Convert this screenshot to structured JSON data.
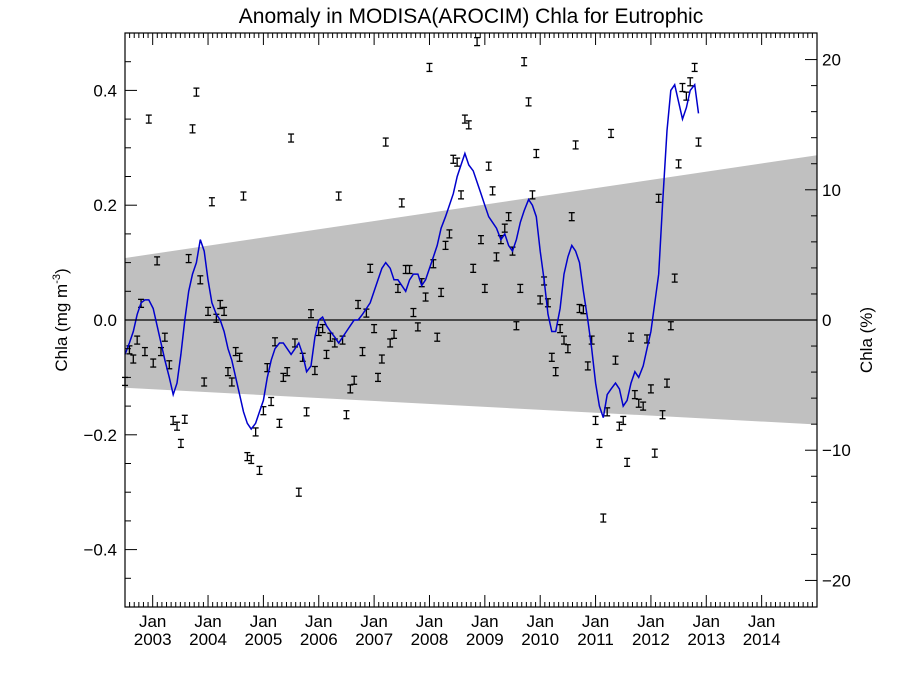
{
  "chart_data": {
    "type": "scatter",
    "title": "Anomaly in MODISA(AROCIM) Chla for Eutrophic",
    "ylabel_main": "Chla (mg m",
    "ylabel_unit_exp": "-3",
    "ylabel_close": ")",
    "y2label": "Chla (%)",
    "ylim": [
      -0.5,
      0.5
    ],
    "y_ticks": [
      -0.4,
      -0.2,
      0.0,
      0.2,
      0.4
    ],
    "y_tick_labels": [
      "−0.4",
      "−0.2",
      "0.0",
      "0.2",
      "0.4"
    ],
    "y2lim": [
      -22.04,
      22.04
    ],
    "y2_ticks": [
      -20,
      -10,
      0,
      10,
      20
    ],
    "y2_tick_labels": [
      "−20",
      "−10",
      "0",
      "10",
      "20"
    ],
    "xlim": [
      2002.5,
      2015.0
    ],
    "x_month_label": "Jan",
    "x_years": [
      2003,
      2004,
      2005,
      2006,
      2007,
      2008,
      2009,
      2010,
      2011,
      2012,
      2013,
      2014
    ],
    "x_year_labels": [
      "2003",
      "2004",
      "2005",
      "2006",
      "2007",
      "2008",
      "2009",
      "2010",
      "2011",
      "2012",
      "2013",
      "2014"
    ],
    "zero_line": 0.0,
    "confidence_band": {
      "x": [
        2002.5,
        2015.0
      ],
      "upper": [
        0.108,
        0.287
      ],
      "lower": [
        -0.118,
        -0.182
      ],
      "color": "#c0c0c0"
    },
    "series": [
      {
        "type": "errorbar_points",
        "color": "#000000",
        "points": [
          [
            2002.5,
            -0.107
          ],
          [
            2002.58,
            -0.052
          ],
          [
            2002.65,
            -0.068
          ],
          [
            2002.72,
            -0.035
          ],
          [
            2002.79,
            0.029
          ],
          [
            2002.86,
            -0.055
          ],
          [
            2002.93,
            0.35
          ],
          [
            2003.01,
            -0.075
          ],
          [
            2003.08,
            0.103
          ],
          [
            2003.15,
            -0.055
          ],
          [
            2003.22,
            -0.03
          ],
          [
            2003.3,
            -0.078
          ],
          [
            2003.37,
            -0.175
          ],
          [
            2003.44,
            -0.185
          ],
          [
            2003.51,
            -0.215
          ],
          [
            2003.58,
            -0.173
          ],
          [
            2003.65,
            0.107
          ],
          [
            2003.72,
            0.333
          ],
          [
            2003.79,
            0.397
          ],
          [
            2003.86,
            0.07
          ],
          [
            2003.93,
            -0.108
          ],
          [
            2004.0,
            0.015
          ],
          [
            2004.07,
            0.206
          ],
          [
            2004.15,
            0.003
          ],
          [
            2004.22,
            0.027
          ],
          [
            2004.29,
            0.015
          ],
          [
            2004.36,
            -0.09
          ],
          [
            2004.43,
            -0.108
          ],
          [
            2004.5,
            -0.055
          ],
          [
            2004.57,
            -0.065
          ],
          [
            2004.64,
            0.216
          ],
          [
            2004.71,
            -0.238
          ],
          [
            2004.78,
            -0.243
          ],
          [
            2004.86,
            -0.195
          ],
          [
            2004.93,
            -0.262
          ],
          [
            2005.0,
            -0.158
          ],
          [
            2005.07,
            -0.083
          ],
          [
            2005.14,
            -0.142
          ],
          [
            2005.21,
            -0.038
          ],
          [
            2005.29,
            -0.18
          ],
          [
            2005.36,
            -0.1
          ],
          [
            2005.43,
            -0.09
          ],
          [
            2005.5,
            0.317
          ],
          [
            2005.57,
            -0.04
          ],
          [
            2005.64,
            -0.3
          ],
          [
            2005.71,
            -0.065
          ],
          [
            2005.78,
            -0.16
          ],
          [
            2005.86,
            0.011
          ],
          [
            2005.93,
            -0.088
          ],
          [
            2006.0,
            -0.02
          ],
          [
            2006.07,
            -0.015
          ],
          [
            2006.14,
            -0.06
          ],
          [
            2006.21,
            -0.03
          ],
          [
            2006.29,
            -0.04
          ],
          [
            2006.36,
            0.216
          ],
          [
            2006.43,
            -0.035
          ],
          [
            2006.5,
            -0.165
          ],
          [
            2006.57,
            -0.12
          ],
          [
            2006.64,
            -0.105
          ],
          [
            2006.71,
            0.027
          ],
          [
            2006.79,
            -0.055
          ],
          [
            2006.86,
            0.012
          ],
          [
            2006.93,
            0.09
          ],
          [
            2007.0,
            -0.015
          ],
          [
            2007.07,
            -0.1
          ],
          [
            2007.14,
            -0.068
          ],
          [
            2007.21,
            0.31
          ],
          [
            2007.29,
            -0.04
          ],
          [
            2007.36,
            -0.025
          ],
          [
            2007.43,
            0.055
          ],
          [
            2007.5,
            0.204
          ],
          [
            2007.57,
            0.088
          ],
          [
            2007.64,
            0.088
          ],
          [
            2007.71,
            0.013
          ],
          [
            2007.79,
            -0.012
          ],
          [
            2007.86,
            0.065
          ],
          [
            2007.93,
            0.04
          ],
          [
            2008.0,
            0.44
          ],
          [
            2008.07,
            0.098
          ],
          [
            2008.14,
            -0.03
          ],
          [
            2008.21,
            0.048
          ],
          [
            2008.29,
            0.13
          ],
          [
            2008.36,
            0.15
          ],
          [
            2008.43,
            0.28
          ],
          [
            2008.5,
            0.275
          ],
          [
            2008.57,
            0.218
          ],
          [
            2008.64,
            0.35
          ],
          [
            2008.71,
            0.34
          ],
          [
            2008.79,
            0.09
          ],
          [
            2008.86,
            0.485
          ],
          [
            2008.93,
            0.14
          ],
          [
            2009.0,
            0.055
          ],
          [
            2009.07,
            0.268
          ],
          [
            2009.14,
            0.225
          ],
          [
            2009.21,
            0.11
          ],
          [
            2009.29,
            0.14
          ],
          [
            2009.36,
            0.16
          ],
          [
            2009.43,
            0.18
          ],
          [
            2009.5,
            0.12
          ],
          [
            2009.57,
            -0.01
          ],
          [
            2009.64,
            0.055
          ],
          [
            2009.71,
            0.45
          ],
          [
            2009.79,
            0.38
          ],
          [
            2009.86,
            0.218
          ],
          [
            2009.93,
            0.29
          ],
          [
            2010.0,
            0.035
          ],
          [
            2010.07,
            0.068
          ],
          [
            2010.14,
            0.03
          ],
          [
            2010.21,
            -0.065
          ],
          [
            2010.28,
            -0.09
          ],
          [
            2010.36,
            -0.015
          ],
          [
            2010.43,
            -0.035
          ],
          [
            2010.5,
            -0.05
          ],
          [
            2010.57,
            0.18
          ],
          [
            2010.64,
            0.305
          ],
          [
            2010.71,
            0.02
          ],
          [
            2010.78,
            0.018
          ],
          [
            2010.86,
            -0.08
          ],
          [
            2010.93,
            -0.035
          ],
          [
            2011.0,
            -0.175
          ],
          [
            2011.07,
            -0.215
          ],
          [
            2011.14,
            -0.345
          ],
          [
            2011.21,
            -0.16
          ],
          [
            2011.28,
            0.325
          ],
          [
            2011.36,
            -0.07
          ],
          [
            2011.43,
            -0.185
          ],
          [
            2011.5,
            -0.175
          ],
          [
            2011.57,
            -0.248
          ],
          [
            2011.64,
            -0.03
          ],
          [
            2011.71,
            -0.13
          ],
          [
            2011.78,
            -0.145
          ],
          [
            2011.86,
            -0.15
          ],
          [
            2011.93,
            -0.033
          ],
          [
            2012.0,
            -0.12
          ],
          [
            2012.07,
            -0.232
          ],
          [
            2012.14,
            0.212
          ],
          [
            2012.21,
            -0.165
          ],
          [
            2012.29,
            -0.11
          ],
          [
            2012.36,
            -0.01
          ],
          [
            2012.43,
            0.073
          ],
          [
            2012.5,
            0.272
          ],
          [
            2012.57,
            0.405
          ],
          [
            2012.64,
            0.39
          ],
          [
            2012.71,
            0.415
          ],
          [
            2012.79,
            0.44
          ],
          [
            2012.86,
            0.31
          ]
        ]
      },
      {
        "type": "line",
        "color": "#0000cc",
        "x": [
          2002.5,
          2002.58,
          2002.65,
          2002.72,
          2002.79,
          2002.86,
          2002.93,
          2003.01,
          2003.08,
          2003.15,
          2003.22,
          2003.3,
          2003.37,
          2003.44,
          2003.51,
          2003.58,
          2003.65,
          2003.72,
          2003.79,
          2003.86,
          2003.93,
          2004.0,
          2004.07,
          2004.15,
          2004.22,
          2004.29,
          2004.36,
          2004.43,
          2004.5,
          2004.57,
          2004.64,
          2004.71,
          2004.78,
          2004.86,
          2004.93,
          2005.0,
          2005.07,
          2005.14,
          2005.21,
          2005.29,
          2005.36,
          2005.43,
          2005.5,
          2005.57,
          2005.64,
          2005.71,
          2005.78,
          2005.86,
          2005.93,
          2006.0,
          2006.07,
          2006.14,
          2006.21,
          2006.29,
          2006.36,
          2006.43,
          2006.5,
          2006.57,
          2006.64,
          2006.71,
          2006.79,
          2006.86,
          2006.93,
          2007.0,
          2007.07,
          2007.14,
          2007.21,
          2007.29,
          2007.36,
          2007.43,
          2007.5,
          2007.57,
          2007.64,
          2007.71,
          2007.79,
          2007.86,
          2007.93,
          2008.0,
          2008.07,
          2008.14,
          2008.21,
          2008.29,
          2008.36,
          2008.43,
          2008.5,
          2008.57,
          2008.64,
          2008.71,
          2008.79,
          2008.86,
          2008.93,
          2009.0,
          2009.07,
          2009.14,
          2009.21,
          2009.29,
          2009.36,
          2009.43,
          2009.5,
          2009.57,
          2009.64,
          2009.71,
          2009.79,
          2009.86,
          2009.93,
          2010.0,
          2010.07,
          2010.14,
          2010.21,
          2010.28,
          2010.36,
          2010.43,
          2010.5,
          2010.57,
          2010.64,
          2010.71,
          2010.78,
          2010.86,
          2010.93,
          2011.0,
          2011.07,
          2011.14,
          2011.21,
          2011.28,
          2011.36,
          2011.43,
          2011.5,
          2011.57,
          2011.64,
          2011.71,
          2011.78,
          2011.86,
          2011.93,
          2012.0,
          2012.07,
          2012.14,
          2012.21,
          2012.29,
          2012.36,
          2012.43,
          2012.5,
          2012.57,
          2012.64,
          2012.71,
          2012.79,
          2012.86
        ],
        "y": [
          -0.06,
          -0.04,
          -0.02,
          0.01,
          0.03,
          0.035,
          0.035,
          0.02,
          -0.01,
          -0.04,
          -0.07,
          -0.1,
          -0.13,
          -0.11,
          -0.06,
          0.0,
          0.05,
          0.08,
          0.1,
          0.14,
          0.12,
          0.07,
          0.03,
          0.01,
          0.0,
          -0.02,
          -0.05,
          -0.07,
          -0.1,
          -0.13,
          -0.16,
          -0.18,
          -0.19,
          -0.18,
          -0.16,
          -0.14,
          -0.1,
          -0.07,
          -0.05,
          -0.04,
          -0.04,
          -0.05,
          -0.06,
          -0.05,
          -0.04,
          -0.06,
          -0.09,
          -0.08,
          -0.03,
          0.0,
          0.005,
          -0.01,
          -0.02,
          -0.03,
          -0.04,
          -0.03,
          -0.02,
          -0.01,
          0.0,
          0.0,
          0.01,
          0.02,
          0.03,
          0.05,
          0.07,
          0.09,
          0.1,
          0.09,
          0.07,
          0.07,
          0.06,
          0.05,
          0.07,
          0.08,
          0.08,
          0.06,
          0.07,
          0.09,
          0.11,
          0.13,
          0.16,
          0.18,
          0.2,
          0.22,
          0.25,
          0.27,
          0.29,
          0.27,
          0.26,
          0.24,
          0.22,
          0.2,
          0.18,
          0.17,
          0.16,
          0.14,
          0.15,
          0.13,
          0.12,
          0.14,
          0.17,
          0.19,
          0.21,
          0.2,
          0.18,
          0.12,
          0.07,
          0.01,
          -0.02,
          -0.02,
          0.02,
          0.08,
          0.11,
          0.13,
          0.12,
          0.1,
          0.05,
          0.0,
          -0.05,
          -0.11,
          -0.15,
          -0.17,
          -0.13,
          -0.12,
          -0.11,
          -0.12,
          -0.15,
          -0.14,
          -0.11,
          -0.09,
          -0.1,
          -0.08,
          -0.05,
          -0.02,
          0.03,
          0.08,
          0.2,
          0.33,
          0.4,
          0.41,
          0.38,
          0.35,
          0.37,
          0.4,
          0.41,
          0.36
        ]
      }
    ]
  }
}
